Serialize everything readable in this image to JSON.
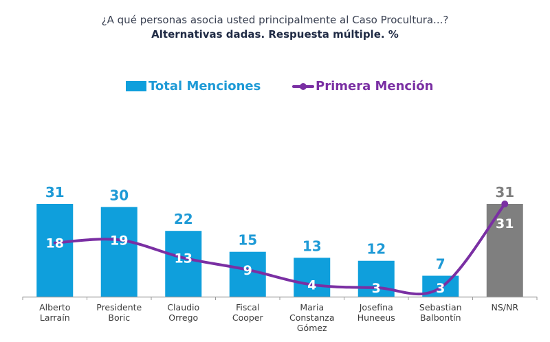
{
  "title": "¿A qué personas asocia usted principalmente al Caso Procultura...?",
  "subtitle": "Alternativas dadas. Respuesta múltiple. %",
  "legend": {
    "bar_label": "Total Menciones",
    "line_label": "Primera Mención"
  },
  "colors": {
    "bar": "#0f9fdc",
    "bar_nsnr": "#7f7f7f",
    "line": "#7a2fa3",
    "bar_label": "#1e9ad6",
    "bar_label_nsnr": "#7f7f7f",
    "inner_label": "#ffffff",
    "axis": "#9a9a9a"
  },
  "chart_data": {
    "type": "bar",
    "title": "¿A qué personas asocia usted principalmente al Caso Procultura...?",
    "subtitle": "Alternativas dadas. Respuesta múltiple. %",
    "xlabel": "",
    "ylabel": "",
    "ylim": [
      0,
      31
    ],
    "grid": false,
    "legend_position": "top-center",
    "categories": [
      [
        "Alberto",
        "Larraín"
      ],
      [
        "Presidente",
        "Boric"
      ],
      [
        "Claudio",
        "Orrego"
      ],
      [
        "Fiscal",
        "Cooper"
      ],
      [
        "Maria",
        "Constanza",
        "Gómez"
      ],
      [
        "Josefina",
        "Huneeus"
      ],
      [
        "Sebastian",
        "Balbontín"
      ],
      [
        "NS/NR"
      ]
    ],
    "series": [
      {
        "name": "Total Menciones",
        "type": "bar",
        "values": [
          31,
          30,
          22,
          15,
          13,
          12,
          7,
          31
        ]
      },
      {
        "name": "Primera Mención",
        "type": "line",
        "values": [
          18,
          19,
          13,
          9,
          4,
          3,
          3,
          31
        ]
      }
    ],
    "highlight_categories": [
      "NS/NR"
    ]
  }
}
